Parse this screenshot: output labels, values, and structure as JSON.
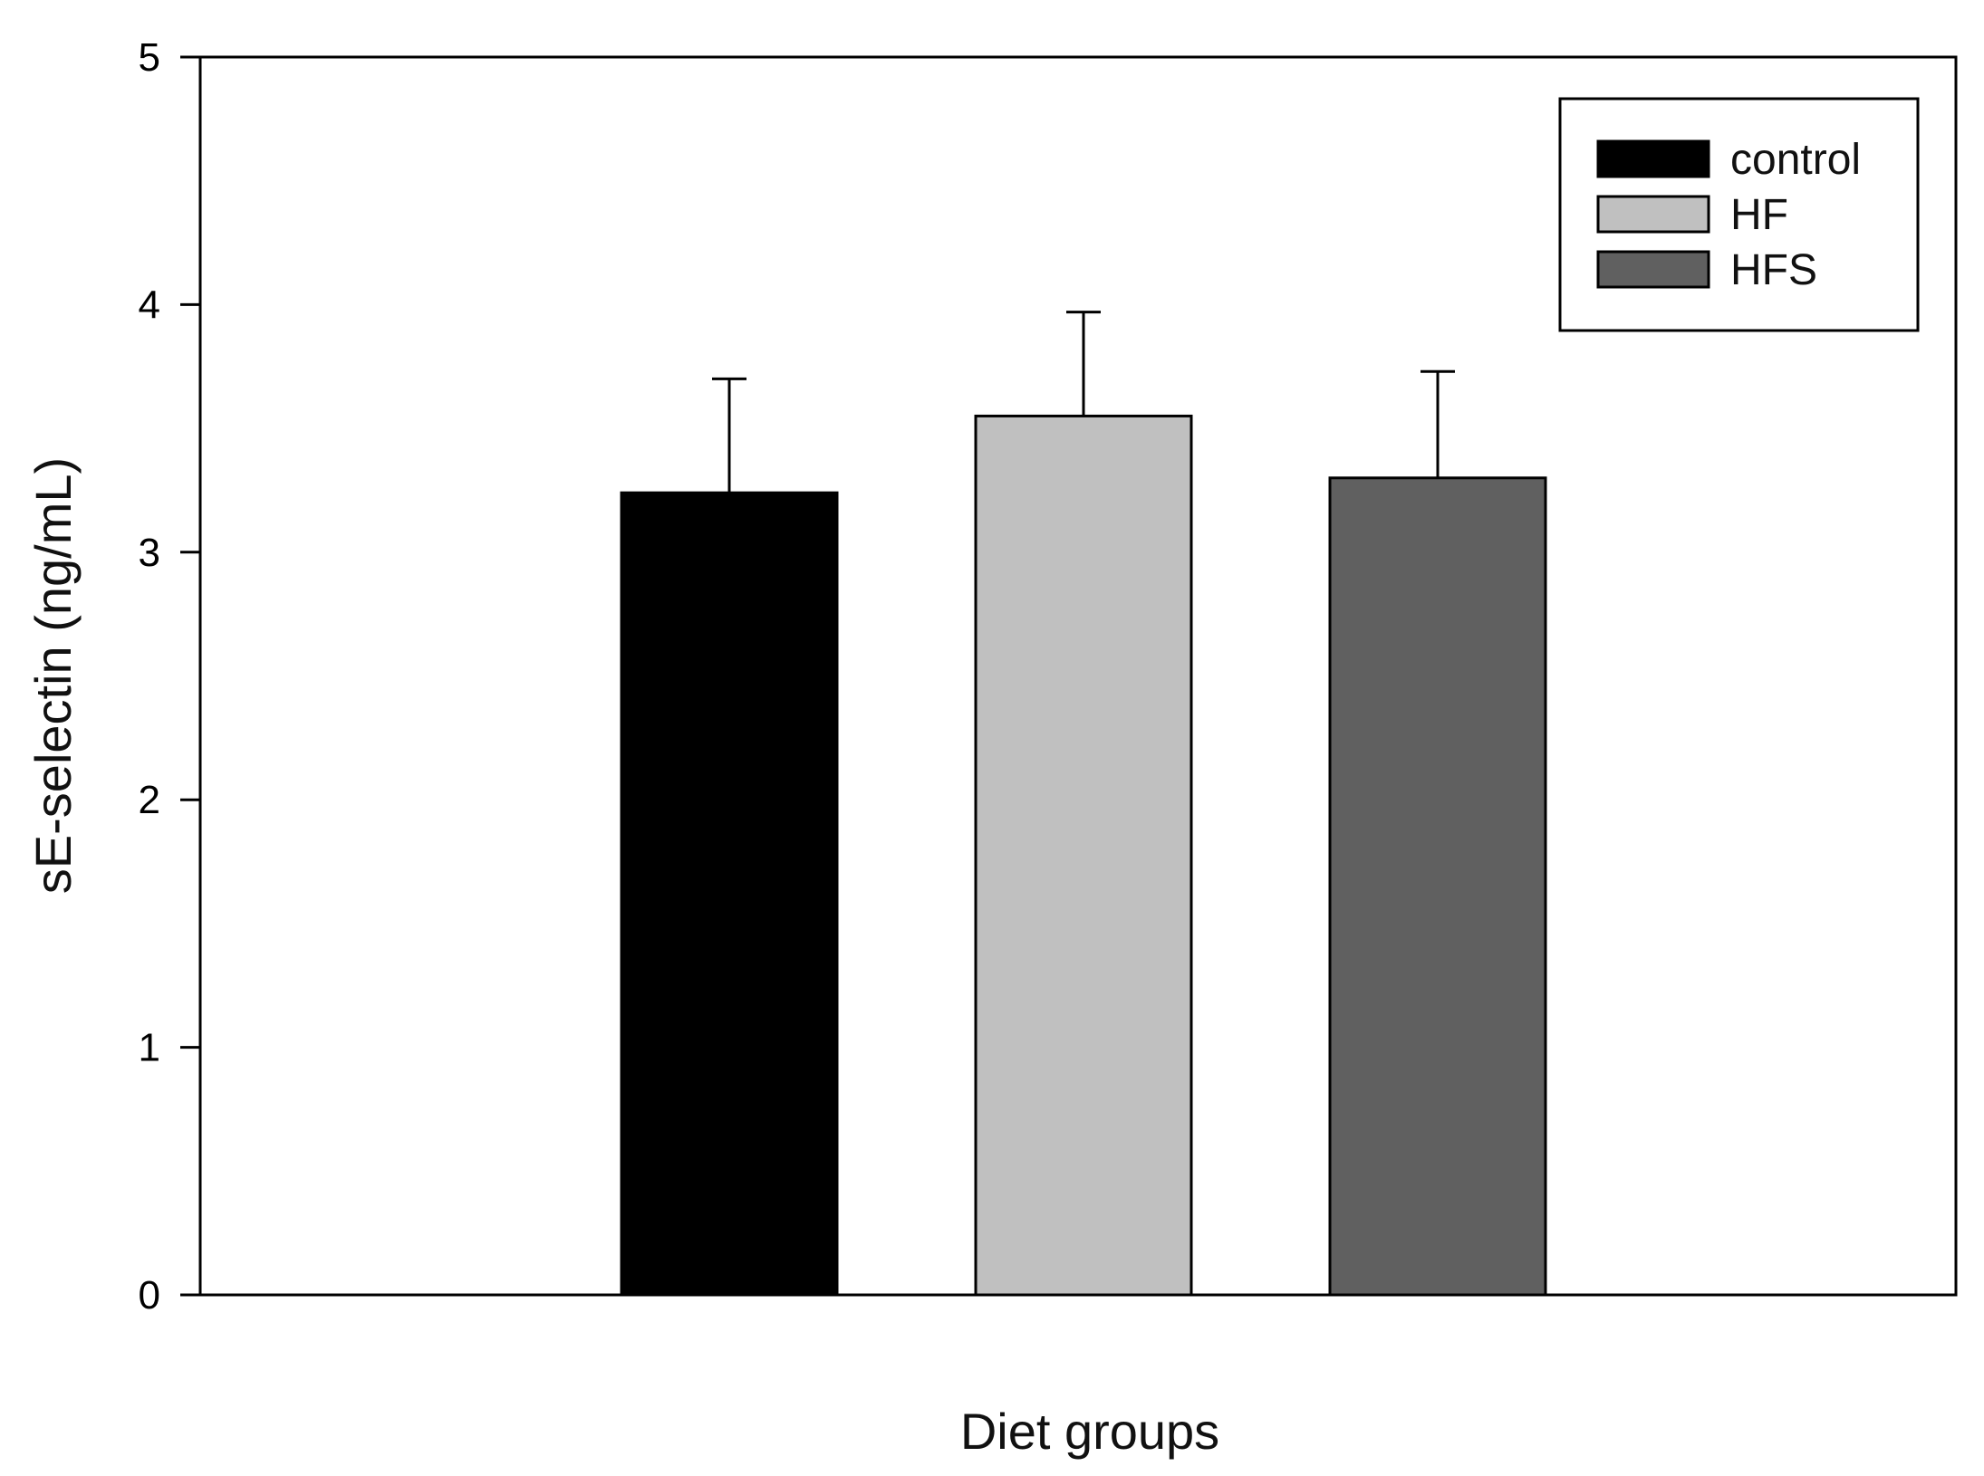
{
  "chart_data": {
    "type": "bar",
    "title": "",
    "xlabel": "Diet groups",
    "ylabel": "sE-selectin (ng/mL)",
    "ylim": [
      0,
      5
    ],
    "yticks": [
      0,
      1,
      2,
      3,
      4,
      5
    ],
    "grid": false,
    "legend_position": "top-right",
    "series": [
      {
        "name": "control",
        "value": 3.24,
        "error": 0.46,
        "color": "#000000"
      },
      {
        "name": "HF",
        "value": 3.55,
        "error": 0.42,
        "color": "#c0c0c0"
      },
      {
        "name": "HFS",
        "value": 3.3,
        "error": 0.43,
        "color": "#606060"
      }
    ]
  }
}
